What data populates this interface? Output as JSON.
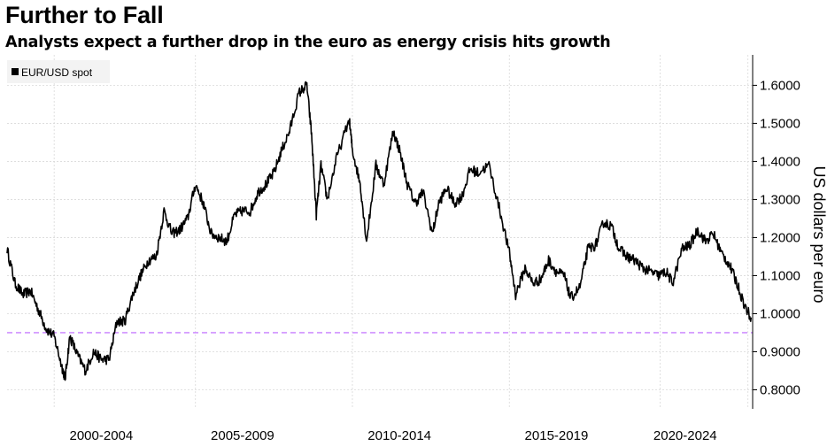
{
  "chart_data": {
    "type": "line",
    "title": "Further to Fall",
    "subtitle": "Analysts expect a further drop in the euro as energy crisis hits growth",
    "ylabel": "US dollars per euro",
    "xlabel": "",
    "ylim": [
      0.75,
      1.68
    ],
    "xlim": [
      1999.0,
      2022.75
    ],
    "yticks": [
      "0.8000",
      "0.9000",
      "1.0000",
      "1.1000",
      "1.2000",
      "1.3000",
      "1.4000",
      "1.5000",
      "1.6000"
    ],
    "xticks": [
      {
        "label": "2000-2004",
        "center": 2002.0
      },
      {
        "label": "2005-2009",
        "center": 2006.5
      },
      {
        "label": "2010-2014",
        "center": 2011.5
      },
      {
        "label": "2015-2019",
        "center": 2016.5
      },
      {
        "label": "2020-2024",
        "center": 2020.6
      }
    ],
    "vgrid_years": [
      2000.5,
      2005.0,
      2010.0,
      2015.0,
      2019.8,
      2022.6
    ],
    "reference_line": {
      "value": 0.95,
      "color": "#c77dff",
      "style": "dashed"
    },
    "grid": true,
    "legend": {
      "position": "top-left",
      "entries": [
        "EUR/USD spot"
      ]
    },
    "series": [
      {
        "name": "EUR/USD spot",
        "color": "#000000",
        "points": [
          [
            1999.0,
            1.17
          ],
          [
            1999.25,
            1.08
          ],
          [
            1999.5,
            1.05
          ],
          [
            1999.75,
            1.06
          ],
          [
            2000.0,
            1.01
          ],
          [
            2000.25,
            0.96
          ],
          [
            2000.5,
            0.94
          ],
          [
            2000.75,
            0.86
          ],
          [
            2000.85,
            0.83
          ],
          [
            2001.0,
            0.94
          ],
          [
            2001.25,
            0.89
          ],
          [
            2001.5,
            0.85
          ],
          [
            2001.75,
            0.9
          ],
          [
            2002.0,
            0.88
          ],
          [
            2002.25,
            0.88
          ],
          [
            2002.5,
            0.98
          ],
          [
            2002.75,
            0.98
          ],
          [
            2003.0,
            1.05
          ],
          [
            2003.25,
            1.1
          ],
          [
            2003.5,
            1.14
          ],
          [
            2003.75,
            1.15
          ],
          [
            2004.0,
            1.27
          ],
          [
            2004.25,
            1.21
          ],
          [
            2004.5,
            1.22
          ],
          [
            2004.75,
            1.25
          ],
          [
            2005.0,
            1.34
          ],
          [
            2005.25,
            1.29
          ],
          [
            2005.5,
            1.21
          ],
          [
            2005.75,
            1.2
          ],
          [
            2006.0,
            1.19
          ],
          [
            2006.25,
            1.26
          ],
          [
            2006.5,
            1.27
          ],
          [
            2006.75,
            1.27
          ],
          [
            2007.0,
            1.32
          ],
          [
            2007.25,
            1.34
          ],
          [
            2007.5,
            1.37
          ],
          [
            2007.75,
            1.43
          ],
          [
            2008.0,
            1.48
          ],
          [
            2008.3,
            1.58
          ],
          [
            2008.55,
            1.6
          ],
          [
            2008.7,
            1.47
          ],
          [
            2008.85,
            1.26
          ],
          [
            2009.0,
            1.39
          ],
          [
            2009.2,
            1.3
          ],
          [
            2009.5,
            1.41
          ],
          [
            2009.9,
            1.51
          ],
          [
            2010.0,
            1.43
          ],
          [
            2010.25,
            1.34
          ],
          [
            2010.45,
            1.19
          ],
          [
            2010.75,
            1.39
          ],
          [
            2011.0,
            1.34
          ],
          [
            2011.3,
            1.48
          ],
          [
            2011.5,
            1.43
          ],
          [
            2011.75,
            1.34
          ],
          [
            2012.0,
            1.29
          ],
          [
            2012.25,
            1.32
          ],
          [
            2012.55,
            1.21
          ],
          [
            2012.75,
            1.29
          ],
          [
            2013.0,
            1.33
          ],
          [
            2013.25,
            1.29
          ],
          [
            2013.5,
            1.31
          ],
          [
            2013.75,
            1.38
          ],
          [
            2014.0,
            1.37
          ],
          [
            2014.35,
            1.39
          ],
          [
            2014.7,
            1.27
          ],
          [
            2015.0,
            1.16
          ],
          [
            2015.2,
            1.05
          ],
          [
            2015.5,
            1.12
          ],
          [
            2015.75,
            1.08
          ],
          [
            2016.0,
            1.09
          ],
          [
            2016.25,
            1.14
          ],
          [
            2016.5,
            1.11
          ],
          [
            2016.75,
            1.1
          ],
          [
            2016.95,
            1.04
          ],
          [
            2017.25,
            1.07
          ],
          [
            2017.5,
            1.17
          ],
          [
            2017.75,
            1.18
          ],
          [
            2018.0,
            1.24
          ],
          [
            2018.25,
            1.23
          ],
          [
            2018.5,
            1.17
          ],
          [
            2018.75,
            1.15
          ],
          [
            2019.0,
            1.14
          ],
          [
            2019.25,
            1.12
          ],
          [
            2019.5,
            1.11
          ],
          [
            2019.75,
            1.1
          ],
          [
            2020.0,
            1.11
          ],
          [
            2020.2,
            1.08
          ],
          [
            2020.5,
            1.17
          ],
          [
            2020.75,
            1.18
          ],
          [
            2021.0,
            1.22
          ],
          [
            2021.25,
            1.19
          ],
          [
            2021.5,
            1.21
          ],
          [
            2021.75,
            1.16
          ],
          [
            2022.0,
            1.13
          ],
          [
            2022.25,
            1.08
          ],
          [
            2022.5,
            1.02
          ],
          [
            2022.7,
            0.99
          ]
        ]
      }
    ]
  }
}
